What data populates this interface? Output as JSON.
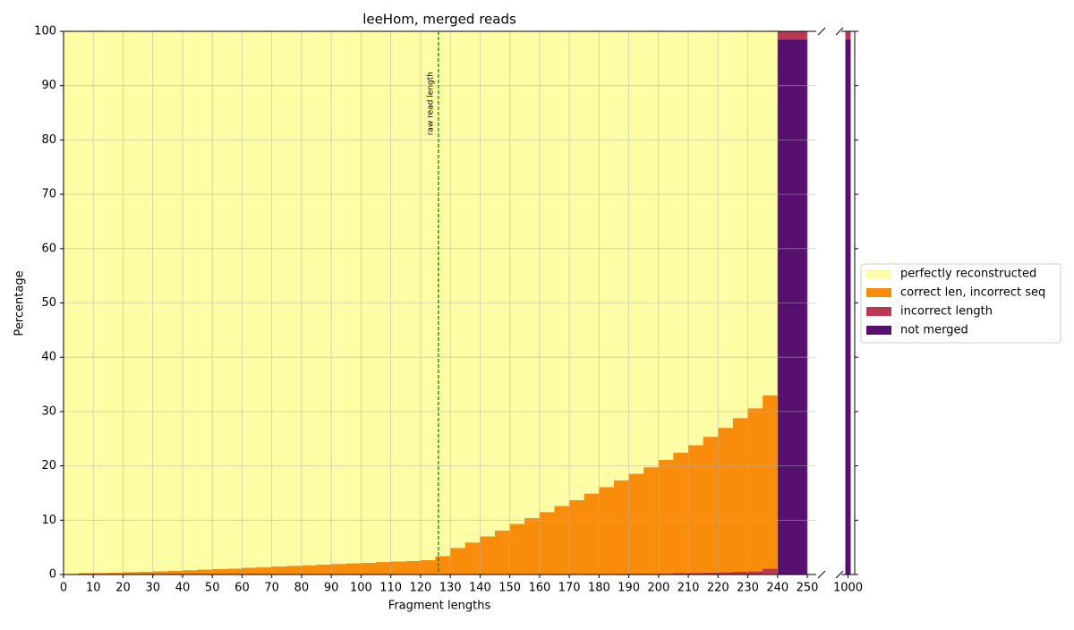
{
  "chart_data": [
    {
      "type": "histogram",
      "title": "leeHom, merged reads",
      "xlabel": "Fragment lengths",
      "ylabel": "Percentage",
      "bins": [
        0,
        5,
        10,
        15,
        20,
        25,
        30,
        35,
        40,
        45,
        50,
        55,
        60,
        65,
        70,
        75,
        80,
        85,
        90,
        95,
        100,
        105,
        110,
        115,
        120,
        125,
        130,
        135,
        140,
        145,
        150,
        155,
        160,
        165,
        170,
        175,
        180,
        185,
        190,
        195,
        200,
        205,
        210,
        215,
        220,
        225,
        230,
        235,
        240,
        245,
        250
      ],
      "series": [
        {
          "name": "perfectly reconstructed",
          "color": "#fcfda4",
          "values": [
            99.9,
            99.75,
            99.7,
            99.65,
            99.55,
            99.5,
            99.4,
            99.3,
            99.2,
            99.1,
            99.0,
            98.9,
            98.75,
            98.65,
            98.5,
            98.4,
            98.3,
            98.15,
            98.05,
            97.95,
            97.85,
            97.7,
            97.6,
            97.5,
            97.35,
            96.6,
            95.1,
            94.1,
            93.0,
            91.9,
            90.7,
            89.6,
            88.5,
            87.4,
            86.3,
            85.1,
            83.9,
            82.65,
            81.45,
            80.25,
            78.9,
            77.55,
            76.2,
            74.65,
            73.0,
            71.2,
            69.4,
            67.0,
            0,
            0
          ]
        },
        {
          "name": "correct len, incorrect seq",
          "color": "#f98c0a",
          "values": [
            0.1,
            0.25,
            0.3,
            0.35,
            0.45,
            0.5,
            0.6,
            0.7,
            0.8,
            0.9,
            1.0,
            1.1,
            1.25,
            1.35,
            1.5,
            1.6,
            1.7,
            1.85,
            1.95,
            2.05,
            2.15,
            2.3,
            2.4,
            2.5,
            2.65,
            3.4,
            4.9,
            5.9,
            7.0,
            8.1,
            9.3,
            10.4,
            11.5,
            12.5,
            13.6,
            14.8,
            16.0,
            17.2,
            18.4,
            19.6,
            20.9,
            22.2,
            23.5,
            25.0,
            26.6,
            28.3,
            30.0,
            31.9,
            0,
            0
          ]
        },
        {
          "name": "incorrect length",
          "color": "#bc3754",
          "values": [
            0,
            0,
            0,
            0,
            0,
            0,
            0,
            0,
            0,
            0,
            0,
            0,
            0,
            0,
            0,
            0,
            0,
            0,
            0,
            0,
            0,
            0,
            0,
            0,
            0,
            0,
            0,
            0,
            0,
            0,
            0,
            0,
            0,
            0.1,
            0.1,
            0.1,
            0.1,
            0.15,
            0.15,
            0.15,
            0.2,
            0.25,
            0.3,
            0.35,
            0.4,
            0.5,
            0.6,
            1.0,
            1.5,
            1.5
          ]
        },
        {
          "name": "not merged",
          "color": "#57106e",
          "values": [
            0,
            0,
            0,
            0,
            0,
            0,
            0,
            0,
            0,
            0,
            0,
            0,
            0,
            0,
            0,
            0,
            0,
            0,
            0,
            0,
            0,
            0,
            0,
            0,
            0,
            0,
            0,
            0,
            0,
            0,
            0,
            0,
            0,
            0,
            0,
            0,
            0,
            0,
            0,
            0,
            0,
            0,
            0,
            0,
            0,
            0,
            0,
            0.1,
            98.5,
            98.5
          ]
        }
      ],
      "xlim": [
        0,
        253
      ],
      "ylim": [
        0,
        100
      ],
      "xticks": [
        0,
        10,
        20,
        30,
        40,
        50,
        60,
        70,
        80,
        90,
        100,
        110,
        120,
        130,
        140,
        150,
        160,
        170,
        180,
        190,
        200,
        210,
        220,
        230,
        240,
        250
      ],
      "yticks": [
        0,
        10,
        20,
        30,
        40,
        50,
        60,
        70,
        80,
        90,
        100
      ],
      "grid": true,
      "legend": "right",
      "vline": {
        "x": 126,
        "label": "raw read length",
        "color": "green"
      }
    },
    {
      "type": "bar",
      "x": [
        1000
      ],
      "series": [
        {
          "name": "perfectly reconstructed",
          "color": "#fcfda4",
          "values": [
            0
          ]
        },
        {
          "name": "correct len, incorrect seq",
          "color": "#f98c0a",
          "values": [
            0
          ]
        },
        {
          "name": "incorrect length",
          "color": "#bc3754",
          "values": [
            1.5
          ]
        },
        {
          "name": "not merged",
          "color": "#57106e",
          "values": [
            98.5
          ]
        }
      ],
      "xlim": [
        996,
        1004
      ],
      "ylim": [
        0,
        100
      ],
      "xticks": [
        1000
      ],
      "yticks": [
        0,
        10,
        20,
        30,
        40,
        50,
        60,
        70,
        80,
        90,
        100
      ]
    }
  ]
}
